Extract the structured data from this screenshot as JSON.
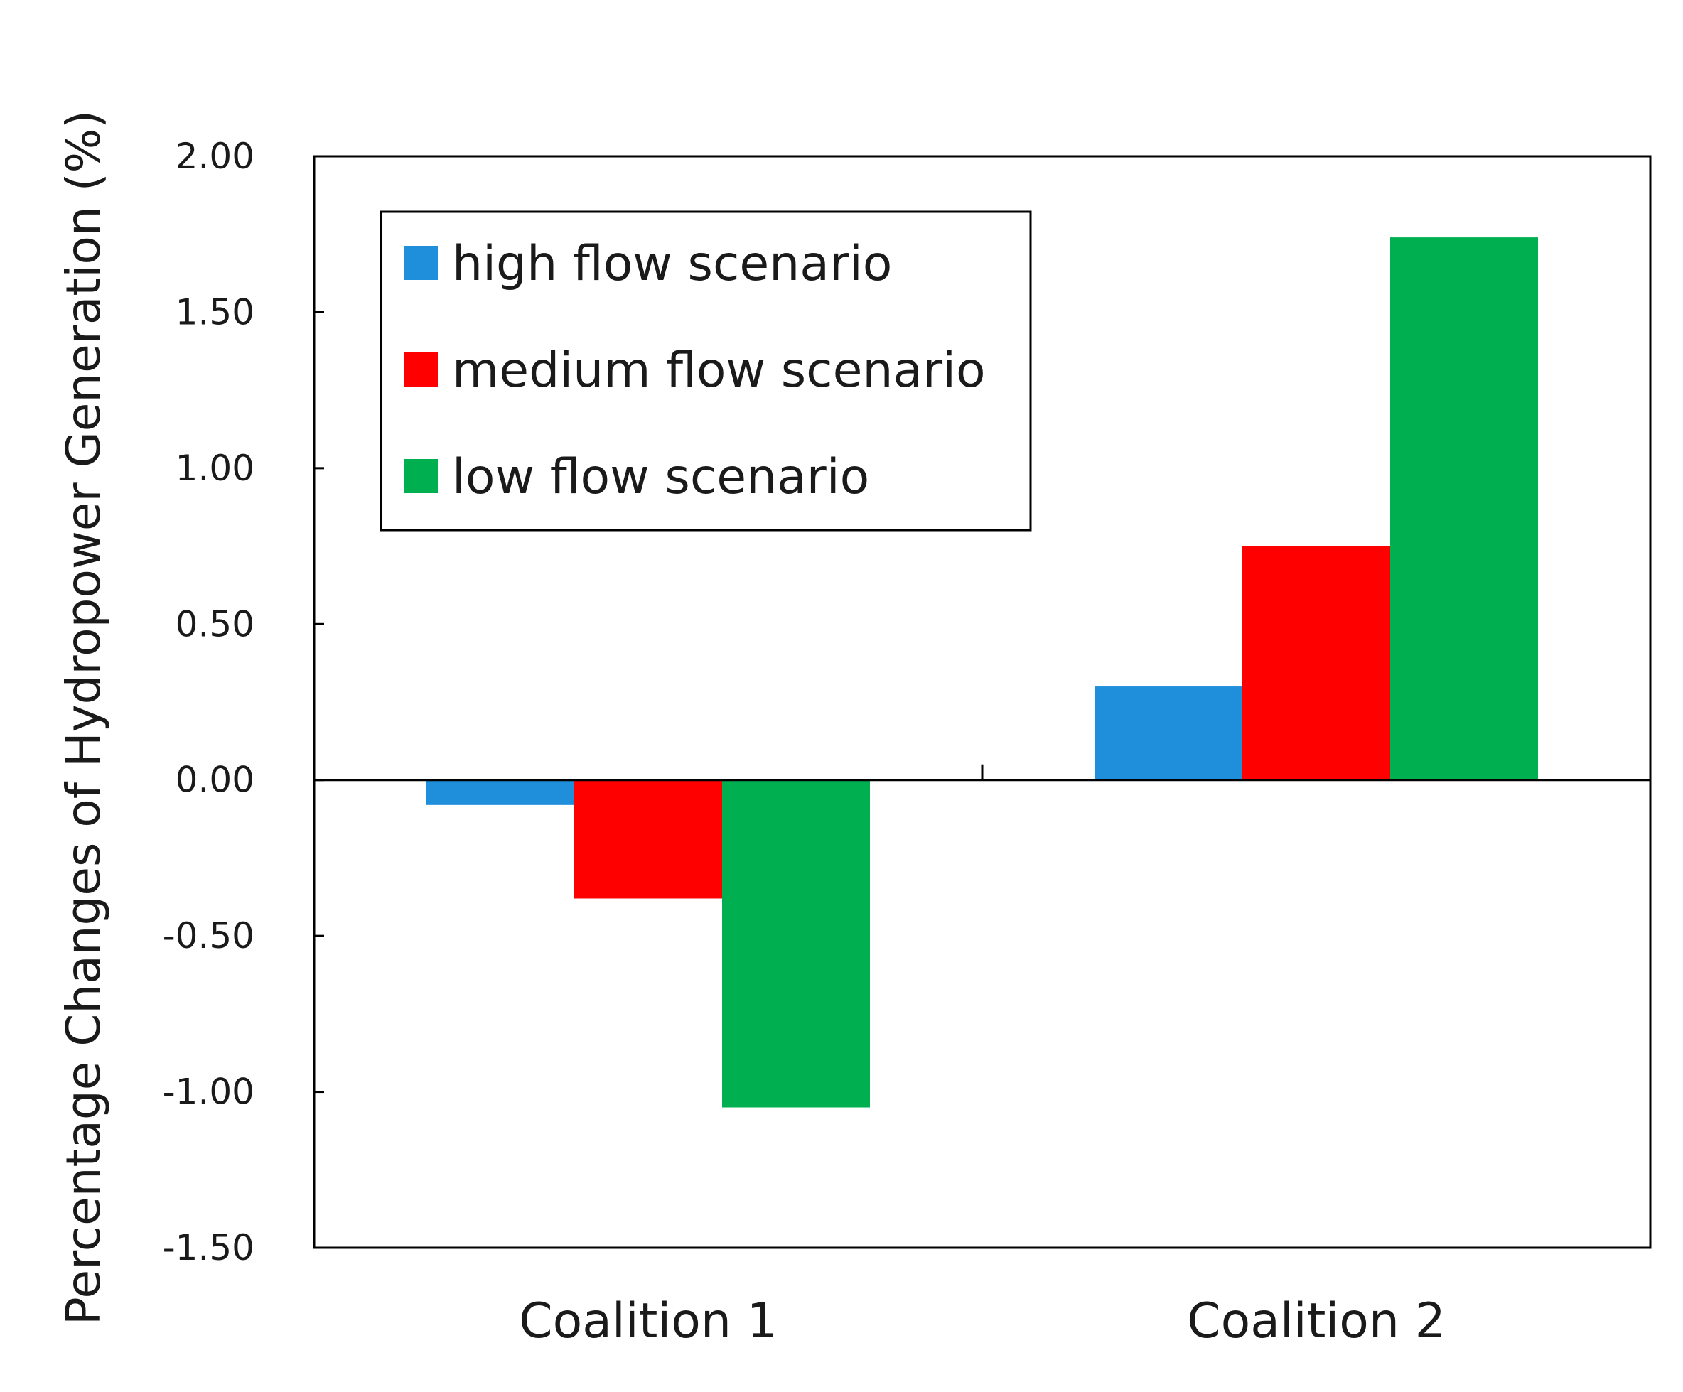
{
  "chart_data": {
    "type": "bar",
    "title": "",
    "xlabel": "",
    "ylabel": "Percentage Changes of Hydropower Generation (%)",
    "categories": [
      "Coalition 1",
      "Coalition 2"
    ],
    "series": [
      {
        "name": "high flow scenario",
        "color": "#1f8fdb",
        "values": [
          -0.08,
          0.3
        ]
      },
      {
        "name": "medium flow scenario",
        "color": "#ff0000",
        "values": [
          -0.38,
          0.75
        ]
      },
      {
        "name": "low flow scenario",
        "color": "#00b050",
        "values": [
          -1.05,
          1.74
        ]
      }
    ],
    "ylim": [
      -1.5,
      2.0
    ],
    "yticks": [
      2.0,
      1.5,
      1.0,
      0.5,
      0.0,
      -0.5,
      -1.0,
      -1.5
    ],
    "ytick_labels": [
      "2.00",
      "1.50",
      "1.00",
      "0.50",
      "0.00",
      "-0.50",
      "-1.00",
      "-1.50"
    ],
    "grid": false,
    "legend_position": "top-left"
  }
}
